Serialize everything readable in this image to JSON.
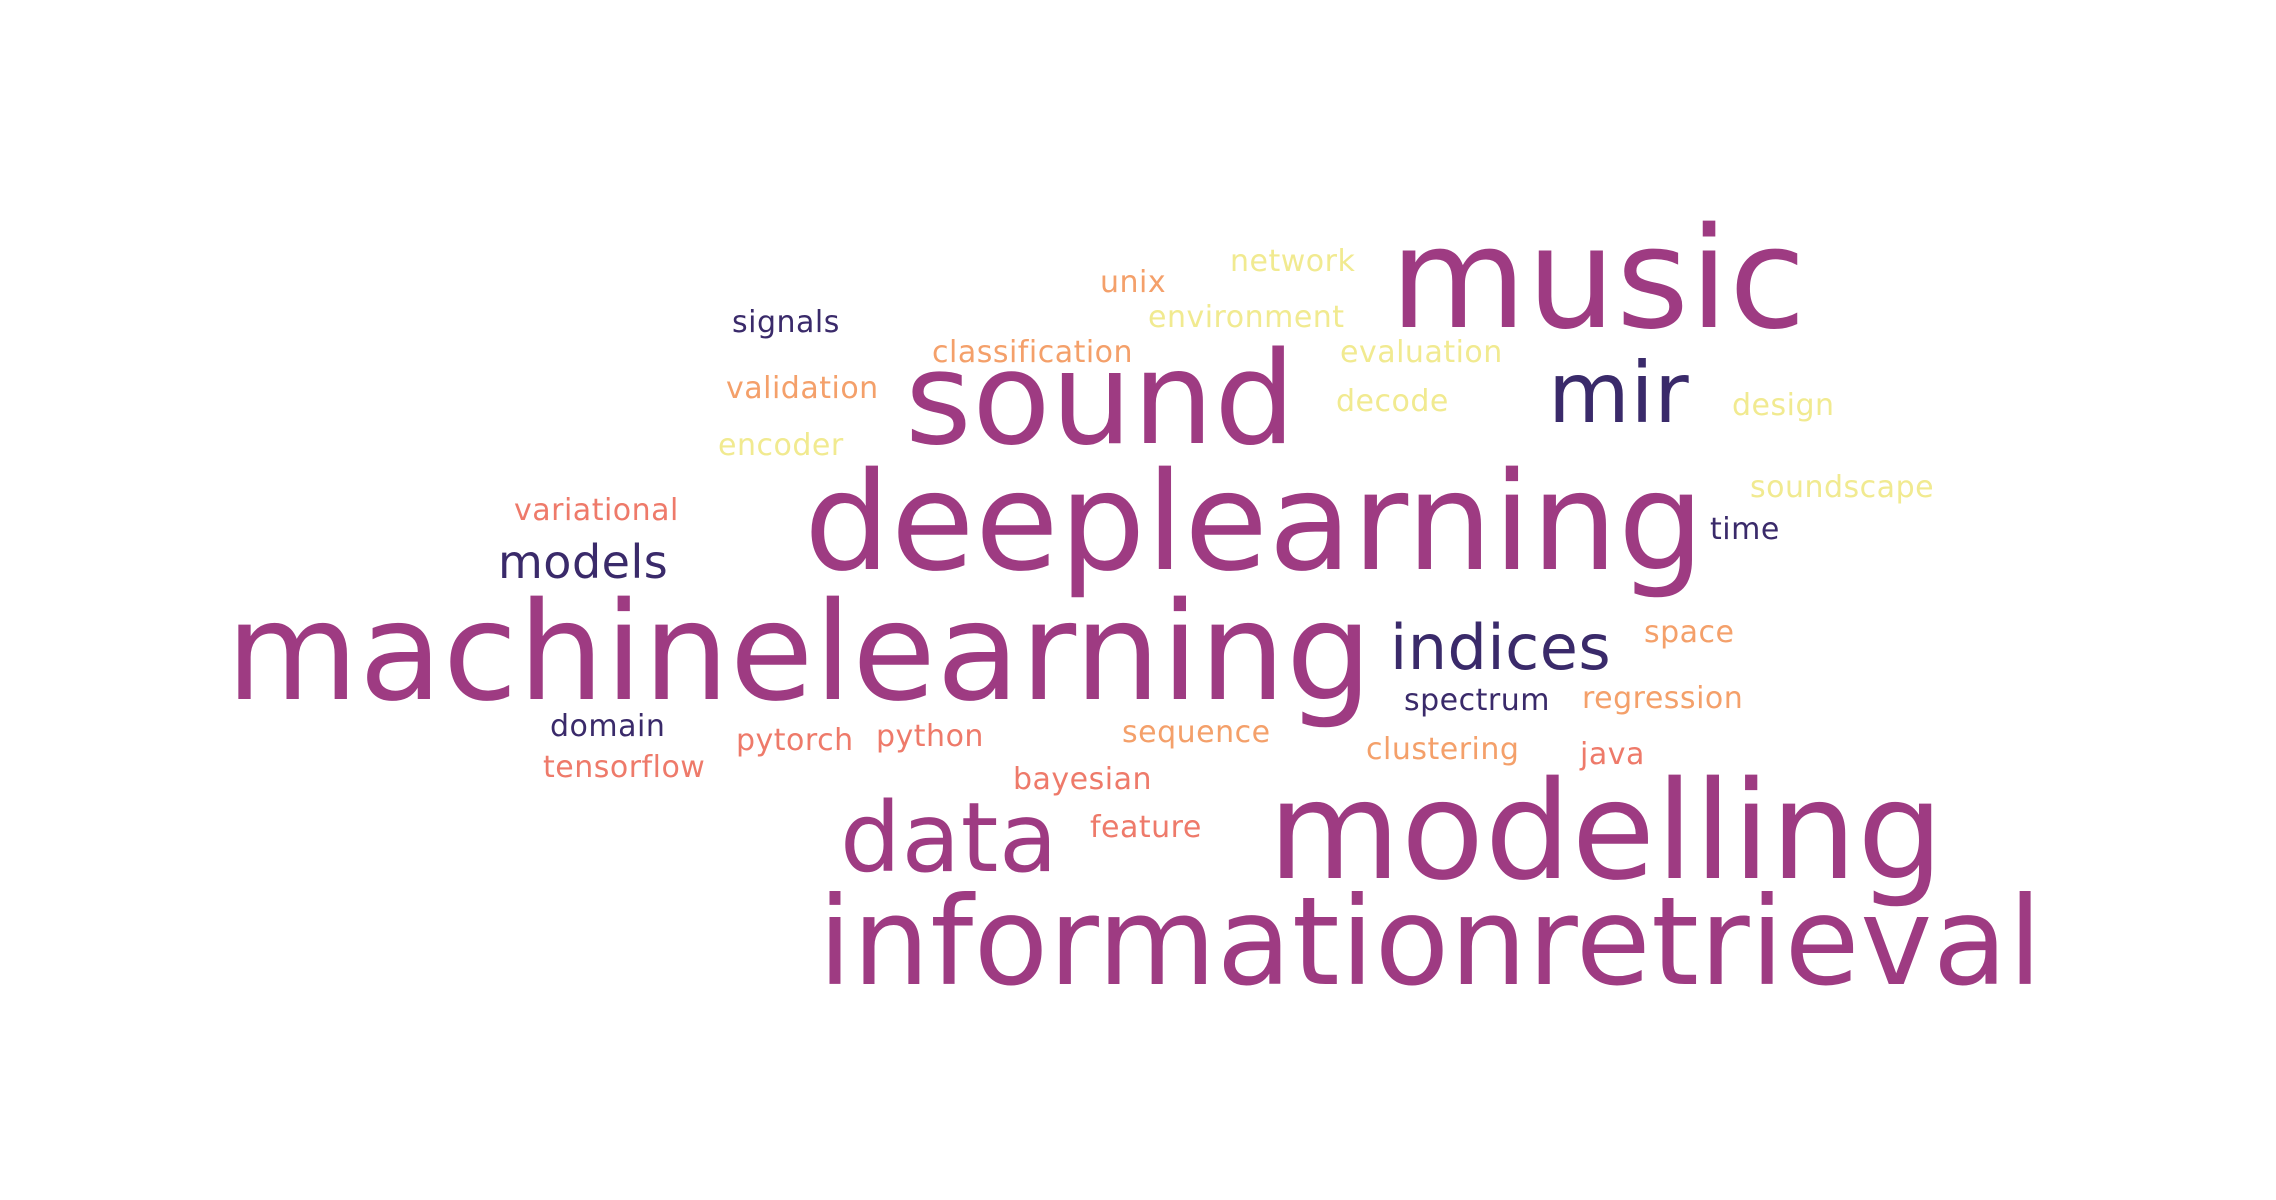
{
  "colors": {
    "magenta": "#9e3b82",
    "indigo": "#3a2a6a",
    "coral": "#ee7a6a",
    "orange": "#f4a06a",
    "yellow": "#f1ea90"
  },
  "words": {
    "music": "music",
    "sound": "sound",
    "mir": "mir",
    "deeplearning": "deeplearning",
    "machinelearning": "machinelearning",
    "indices": "indices",
    "models": "models",
    "data": "data",
    "modelling": "modelling",
    "informationretrieval": "informationretrieval",
    "network": "network",
    "unix": "unix",
    "environment": "environment",
    "signals": "signals",
    "classification": "classification",
    "evaluation": "evaluation",
    "validation": "validation",
    "decode": "decode",
    "design": "design",
    "encoder": "encoder",
    "soundscape": "soundscape",
    "variational": "variational",
    "time": "time",
    "space": "space",
    "spectrum": "spectrum",
    "regression": "regression",
    "domain": "domain",
    "sequence": "sequence",
    "pytorch": "pytorch",
    "python": "python",
    "clustering": "clustering",
    "tensorflow": "tensorflow",
    "java": "java",
    "bayesian": "bayesian",
    "feature": "feature"
  }
}
